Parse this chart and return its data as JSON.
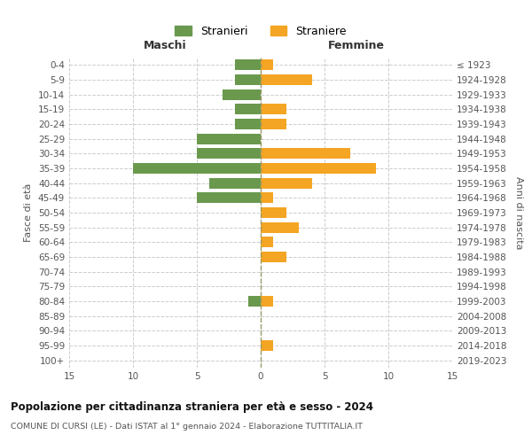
{
  "age_groups": [
    "0-4",
    "5-9",
    "10-14",
    "15-19",
    "20-24",
    "25-29",
    "30-34",
    "35-39",
    "40-44",
    "45-49",
    "50-54",
    "55-59",
    "60-64",
    "65-69",
    "70-74",
    "75-79",
    "80-84",
    "85-89",
    "90-94",
    "95-99",
    "100+"
  ],
  "birth_years": [
    "2019-2023",
    "2014-2018",
    "2009-2013",
    "2004-2008",
    "1999-2003",
    "1994-1998",
    "1989-1993",
    "1984-1988",
    "1979-1983",
    "1974-1978",
    "1969-1973",
    "1964-1968",
    "1959-1963",
    "1954-1958",
    "1949-1953",
    "1944-1948",
    "1939-1943",
    "1934-1938",
    "1929-1933",
    "1924-1928",
    "≤ 1923"
  ],
  "maschi": [
    2,
    2,
    3,
    2,
    2,
    5,
    5,
    10,
    4,
    5,
    0,
    0,
    0,
    0,
    0,
    0,
    1,
    0,
    0,
    0,
    0
  ],
  "femmine": [
    1,
    4,
    0,
    2,
    2,
    0,
    7,
    9,
    4,
    1,
    2,
    3,
    1,
    2,
    0,
    0,
    1,
    0,
    0,
    1,
    0
  ],
  "color_maschi": "#6a994e",
  "color_femmine": "#f4a523",
  "title": "Popolazione per cittadinanza straniera per età e sesso - 2024",
  "subtitle": "COMUNE DI CURSI (LE) - Dati ISTAT al 1° gennaio 2024 - Elaborazione TUTTITALIA.IT",
  "xlabel_left": "Maschi",
  "xlabel_right": "Femmine",
  "ylabel_left": "Fasce di età",
  "ylabel_right": "Anni di nascita",
  "xlim": 15,
  "legend_stranieri": "Stranieri",
  "legend_straniere": "Straniere",
  "background_color": "#ffffff",
  "grid_color": "#cccccc"
}
